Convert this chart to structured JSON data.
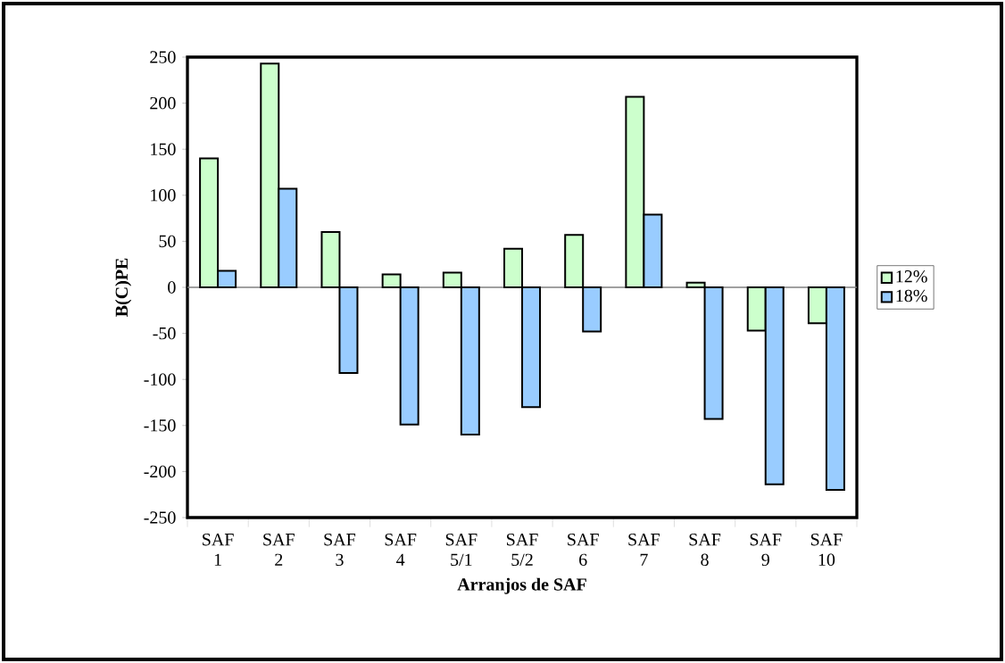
{
  "chart_data": {
    "type": "bar",
    "xlabel": "Arranjos de SAF",
    "ylabel": "B(C)PE",
    "categories": [
      "SAF 1",
      "SAF 2",
      "SAF 3",
      "SAF 4",
      "SAF 5/1",
      "SAF 5/2",
      "SAF 6",
      "SAF 7",
      "SAF 8",
      "SAF 9",
      "SAF 10"
    ],
    "series": [
      {
        "name": "12%",
        "color": "#ccffcc",
        "values": [
          140,
          243,
          60,
          14,
          16,
          42,
          57,
          207,
          5,
          -47,
          -39
        ]
      },
      {
        "name": "18%",
        "color": "#99ccff",
        "values": [
          18,
          107,
          -93,
          -149,
          -160,
          -130,
          -48,
          79,
          -143,
          -214,
          -220
        ]
      }
    ],
    "ylim": [
      -250,
      250
    ],
    "yticks": [
      -250,
      -200,
      -150,
      -100,
      -50,
      0,
      50,
      100,
      150,
      200,
      250
    ],
    "ref_lines": [
      {
        "axis": "y",
        "value": 0,
        "color": "#808080"
      }
    ],
    "grid": false,
    "legend": "right"
  }
}
